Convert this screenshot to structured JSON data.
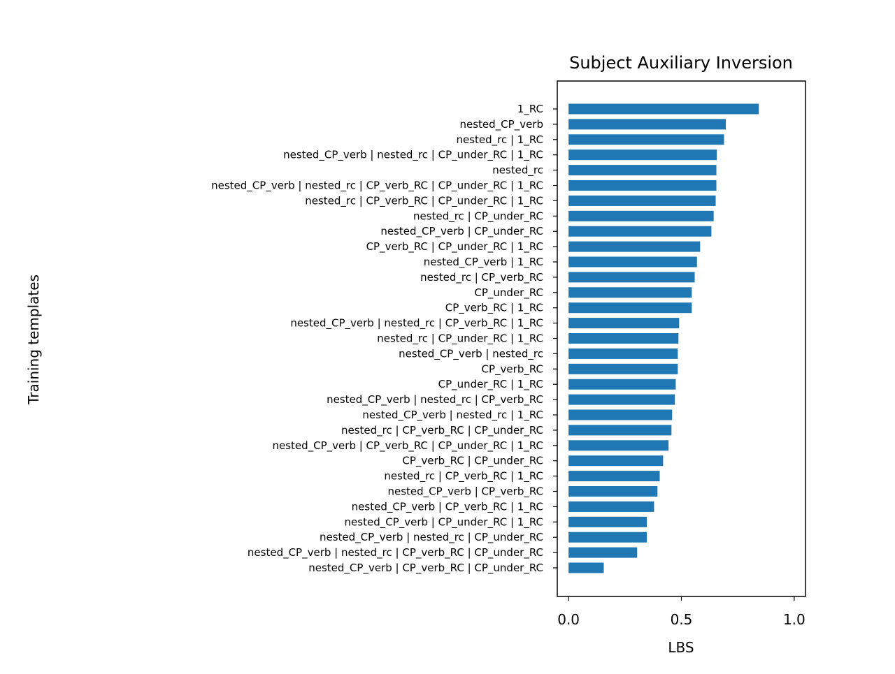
{
  "chart_data": {
    "type": "bar",
    "orientation": "horizontal",
    "title": "Subject Auxiliary Inversion",
    "xlabel": "LBS",
    "ylabel": "Training templates",
    "xlim": [
      -0.05,
      1.05
    ],
    "xticks": [
      0.0,
      0.5,
      1.0
    ],
    "xtick_labels": [
      "0.0",
      "0.5",
      "1.0"
    ],
    "grid": false,
    "bar_color": "#1f77b4",
    "categories": [
      "1_RC",
      "nested_CP_verb",
      "nested_rc | 1_RC",
      "nested_CP_verb | nested_rc | CP_under_RC | 1_RC",
      "nested_rc",
      "nested_CP_verb | nested_rc | CP_verb_RC | CP_under_RC | 1_RC",
      "nested_rc | CP_verb_RC | CP_under_RC | 1_RC",
      "nested_rc | CP_under_RC",
      "nested_CP_verb | CP_under_RC",
      "CP_verb_RC | CP_under_RC | 1_RC",
      "nested_CP_verb | 1_RC",
      "nested_rc | CP_verb_RC",
      "CP_under_RC",
      "CP_verb_RC | 1_RC",
      "nested_CP_verb | nested_rc | CP_verb_RC | 1_RC",
      "nested_rc | CP_under_RC | 1_RC",
      "nested_CP_verb | nested_rc",
      "CP_verb_RC",
      "CP_under_RC | 1_RC",
      "nested_CP_verb | nested_rc | CP_verb_RC",
      "nested_CP_verb | nested_rc | 1_RC",
      "nested_rc | CP_verb_RC | CP_under_RC",
      "nested_CP_verb | CP_verb_RC | CP_under_RC | 1_RC",
      "CP_verb_RC | CP_under_RC",
      "nested_rc | CP_verb_RC | 1_RC",
      "nested_CP_verb | CP_verb_RC",
      "nested_CP_verb | CP_verb_RC | 1_RC",
      "nested_CP_verb | CP_under_RC | 1_RC",
      "nested_CP_verb | nested_rc | CP_under_RC",
      "nested_CP_verb | nested_rc | CP_verb_RC | CP_under_RC",
      "nested_CP_verb | CP_verb_RC | CP_under_RC"
    ],
    "values": [
      0.843,
      0.697,
      0.689,
      0.657,
      0.655,
      0.655,
      0.652,
      0.643,
      0.633,
      0.583,
      0.569,
      0.559,
      0.546,
      0.546,
      0.49,
      0.487,
      0.484,
      0.484,
      0.475,
      0.471,
      0.459,
      0.456,
      0.443,
      0.419,
      0.404,
      0.394,
      0.379,
      0.347,
      0.347,
      0.304,
      0.156
    ]
  }
}
